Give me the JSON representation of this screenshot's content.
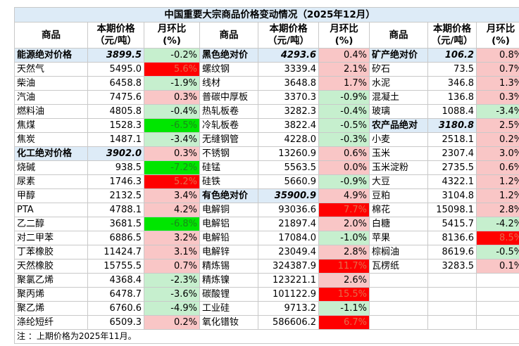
{
  "title": "中国重要大宗商品价格变动情况（2025年12月）",
  "headers": [
    {
      "name_line1": "商品",
      "val_line1": "本期价格",
      "val_line2": "（元/吨）",
      "pct_line1": "月环比",
      "pct_line2": "(%)"
    },
    {
      "name_line1": "商品",
      "val_line1": "本期价格",
      "val_line2": "（元/吨）",
      "pct_line1": "月环比",
      "pct_line2": "(%)"
    },
    {
      "name_line1": "商品",
      "val_line1": "本期价格",
      "val_line2": "（元/吨）",
      "pct_line1": "月环比",
      "pct_line2": "(%)"
    }
  ],
  "rows": [
    [
      {
        "n": "能源绝对价格",
        "v": "3899.5",
        "p": "-0.2%",
        "cat": true
      },
      {
        "n": "黑色绝对价",
        "v": "4293.6",
        "p": "0.4%",
        "cat": true
      },
      {
        "n": "矿产绝对价",
        "v": "106.2",
        "p": "0.8%",
        "cat": true
      }
    ],
    [
      {
        "n": "天然气",
        "v": "5495.0",
        "p": "5.6%"
      },
      {
        "n": "螺纹钢",
        "v": "3339.4",
        "p": "2.1%"
      },
      {
        "n": "矽石",
        "v": "73.5",
        "p": "0.7%"
      }
    ],
    [
      {
        "n": "柴油",
        "v": "6458.8",
        "p": "-1.9%"
      },
      {
        "n": "线材",
        "v": "3648.8",
        "p": "1.7%"
      },
      {
        "n": "水泥",
        "v": "346.8",
        "p": "1.3%"
      }
    ],
    [
      {
        "n": "汽油",
        "v": "7475.6",
        "p": "0.3%"
      },
      {
        "n": "普碳中厚板",
        "v": "3370.3",
        "p": "-0.9%"
      },
      {
        "n": "混凝土",
        "v": "136.8",
        "p": "0.3%"
      }
    ],
    [
      {
        "n": "燃料油",
        "v": "4805.8",
        "p": "-0.4%"
      },
      {
        "n": "热轧板卷",
        "v": "3282.3",
        "p": "-0.4%"
      },
      {
        "n": "玻璃",
        "v": "1088.4",
        "p": "-3.4%"
      }
    ],
    [
      {
        "n": "焦煤",
        "v": "1528.3",
        "p": "-6.5%"
      },
      {
        "n": "冷轧板卷",
        "v": "3822.4",
        "p": "-0.5%"
      },
      {
        "n": "农产品绝对",
        "v": "3180.8",
        "p": "2.5%",
        "cat": true
      }
    ],
    [
      {
        "n": "焦炭",
        "v": "1487.1",
        "p": "-3.4%"
      },
      {
        "n": "无缝钢管",
        "v": "4228.0",
        "p": "-0.3%"
      },
      {
        "n": "小麦",
        "v": "2518.1",
        "p": "0.2%"
      }
    ],
    [
      {
        "n": "化工绝对价格",
        "v": "3902.0",
        "p": "0.3%",
        "cat": true
      },
      {
        "n": "不锈钢",
        "v": "13260.9",
        "p": "0.6%"
      },
      {
        "n": "玉米",
        "v": "2307.4",
        "p": "3.0%"
      }
    ],
    [
      {
        "n": "烧碱",
        "v": "938.5",
        "p": "-7.2%"
      },
      {
        "n": "硅锰",
        "v": "5563.5",
        "p": "0.0%"
      },
      {
        "n": "玉米淀粉",
        "v": "2735.5",
        "p": "0.6%"
      }
    ],
    [
      {
        "n": "尿素",
        "v": "1746.3",
        "p": "5.2%"
      },
      {
        "n": "硅铁",
        "v": "5660.9",
        "p": "-0.9%"
      },
      {
        "n": "大豆",
        "v": "4322.1",
        "p": "1.2%"
      }
    ],
    [
      {
        "n": "甲醇",
        "v": "2132.5",
        "p": "3.4%"
      },
      {
        "n": "有色绝对价",
        "v": "35900.9",
        "p": "4.9%",
        "cat": true
      },
      {
        "n": "豆粕",
        "v": "3104.8",
        "p": "1.2%"
      }
    ],
    [
      {
        "n": "PTA",
        "v": "4788.1",
        "p": "4.2%"
      },
      {
        "n": "电解铜",
        "v": "93036.6",
        "p": "7.7%"
      },
      {
        "n": "棉花",
        "v": "15098.1",
        "p": "2.8%"
      }
    ],
    [
      {
        "n": "乙二醇",
        "v": "3681.5",
        "p": "-6.8%"
      },
      {
        "n": "电解铝",
        "v": "21897.4",
        "p": "2.0%"
      },
      {
        "n": "白糖",
        "v": "5415.7",
        "p": "-4.2%"
      }
    ],
    [
      {
        "n": "对二甲苯",
        "v": "6886.5",
        "p": "3.2%"
      },
      {
        "n": "电解铅",
        "v": "17084.0",
        "p": "-1.0%"
      },
      {
        "n": "苹果",
        "v": "8136.6",
        "p": "8.5%"
      }
    ],
    [
      {
        "n": "丁苯橡胶",
        "v": "11424.7",
        "p": "3.1%"
      },
      {
        "n": "电解锌",
        "v": "23049.4",
        "p": "2.8%"
      },
      {
        "n": "棕榈油",
        "v": "8619.6",
        "p": "-0.5%"
      }
    ],
    [
      {
        "n": "天然橡胶",
        "v": "15755.5",
        "p": "0.7%"
      },
      {
        "n": "精炼锡",
        "v": "324387.9",
        "p": "11.7%"
      },
      {
        "n": "瓦楞纸",
        "v": "3283.5",
        "p": "0.1%"
      }
    ],
    [
      {
        "n": "聚氯乙烯",
        "v": "4368.4",
        "p": "-2.3%"
      },
      {
        "n": "精炼镍",
        "v": "123221.1",
        "p": "2.6%"
      },
      {
        "n": "",
        "v": "",
        "p": ""
      }
    ],
    [
      {
        "n": "聚丙烯",
        "v": "6478.7",
        "p": "-3.6%"
      },
      {
        "n": "碳酸锂",
        "v": "101122.9",
        "p": "15.5%"
      },
      {
        "n": "",
        "v": "",
        "p": ""
      }
    ],
    [
      {
        "n": "聚乙烯",
        "v": "6760.6",
        "p": "-4.9%"
      },
      {
        "n": "工业硅",
        "v": "9713.2",
        "p": "-1.1%"
      },
      {
        "n": "",
        "v": "",
        "p": ""
      }
    ],
    [
      {
        "n": "涤纶短纤",
        "v": "6509.3",
        "p": "0.2%"
      },
      {
        "n": "氧化镨钕",
        "v": "586606.2",
        "p": "6.7%"
      },
      {
        "n": "",
        "v": "",
        "p": ""
      }
    ]
  ],
  "note": "注 ：上期价格为2025年11月。",
  "colors": {
    "header_blue": "#ddebf7",
    "up_light": "#f9c6c6",
    "down_light": "#c6efce",
    "up_strong": "#ff0000",
    "down_strong": "#00e600"
  }
}
